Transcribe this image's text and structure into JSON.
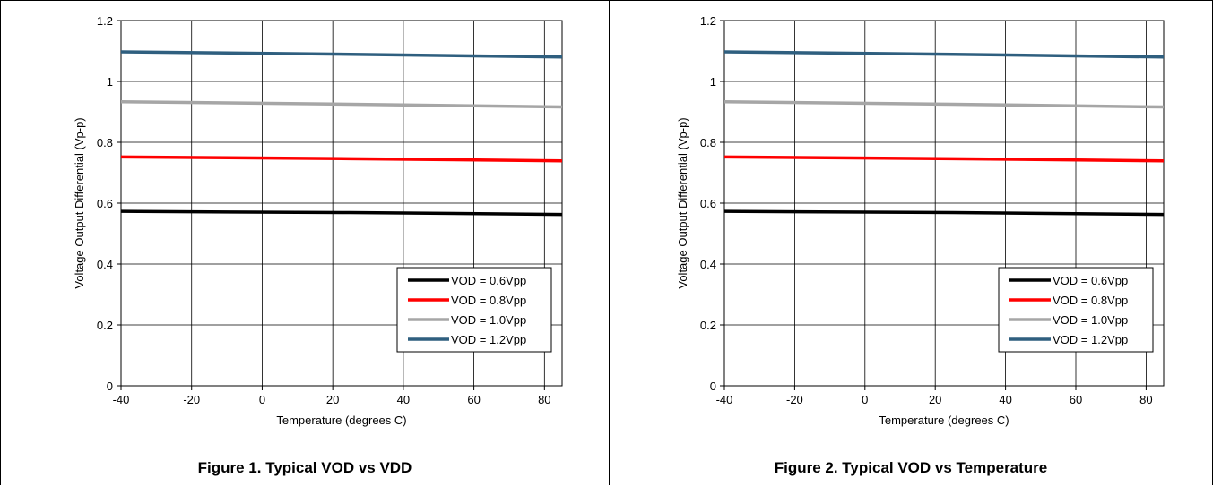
{
  "chart_data": [
    {
      "type": "line",
      "caption": "Figure 1. Typical VOD vs VDD",
      "xlabel": "Temperature (degrees C)",
      "ylabel": "Voltage Output Differential (Vp-p)",
      "xlim": [
        -40,
        85
      ],
      "ylim": [
        0,
        1.2
      ],
      "xticks": [
        "-40",
        "-20",
        "0",
        "20",
        "40",
        "60",
        "80"
      ],
      "xtick_values": [
        -40,
        -20,
        0,
        20,
        40,
        60,
        80
      ],
      "yticks": [
        "0",
        "0.2",
        "0.4",
        "0.6",
        "0.8",
        "1",
        "1.2"
      ],
      "ytick_values": [
        0,
        0.2,
        0.4,
        0.6,
        0.8,
        1,
        1.2
      ],
      "grid": true,
      "legend_position": "bottom-right",
      "x": [
        -40,
        25,
        85
      ],
      "series": [
        {
          "name": "VOD = 0.6Vpp",
          "color": "#000000",
          "values": [
            0.573,
            0.569,
            0.563
          ]
        },
        {
          "name": "VOD = 0.8Vpp",
          "color": "#ff0000",
          "values": [
            0.752,
            0.746,
            0.739
          ]
        },
        {
          "name": "VOD = 1.0Vpp",
          "color": "#a6a6a6",
          "values": [
            0.933,
            0.925,
            0.916
          ]
        },
        {
          "name": "VOD = 1.2Vpp",
          "color": "#2f5f7f",
          "values": [
            1.097,
            1.089,
            1.08
          ]
        }
      ]
    },
    {
      "type": "line",
      "caption": "Figure 2. Typical VOD vs Temperature",
      "xlabel": "Temperature (degrees C)",
      "ylabel": "Voltage Output Differential (Vp-p)",
      "xlim": [
        -40,
        85
      ],
      "ylim": [
        0,
        1.2
      ],
      "xticks": [
        "-40",
        "-20",
        "0",
        "20",
        "40",
        "60",
        "80"
      ],
      "xtick_values": [
        -40,
        -20,
        0,
        20,
        40,
        60,
        80
      ],
      "yticks": [
        "0",
        "0.2",
        "0.4",
        "0.6",
        "0.8",
        "1",
        "1.2"
      ],
      "ytick_values": [
        0,
        0.2,
        0.4,
        0.6,
        0.8,
        1,
        1.2
      ],
      "grid": true,
      "legend_position": "bottom-right",
      "x": [
        -40,
        25,
        85
      ],
      "series": [
        {
          "name": "VOD = 0.6Vpp",
          "color": "#000000",
          "values": [
            0.573,
            0.569,
            0.563
          ]
        },
        {
          "name": "VOD = 0.8Vpp",
          "color": "#ff0000",
          "values": [
            0.752,
            0.746,
            0.739
          ]
        },
        {
          "name": "VOD = 1.0Vpp",
          "color": "#a6a6a6",
          "values": [
            0.933,
            0.925,
            0.916
          ]
        },
        {
          "name": "VOD = 1.2Vpp",
          "color": "#2f5f7f",
          "values": [
            1.097,
            1.089,
            1.08
          ]
        }
      ]
    }
  ]
}
